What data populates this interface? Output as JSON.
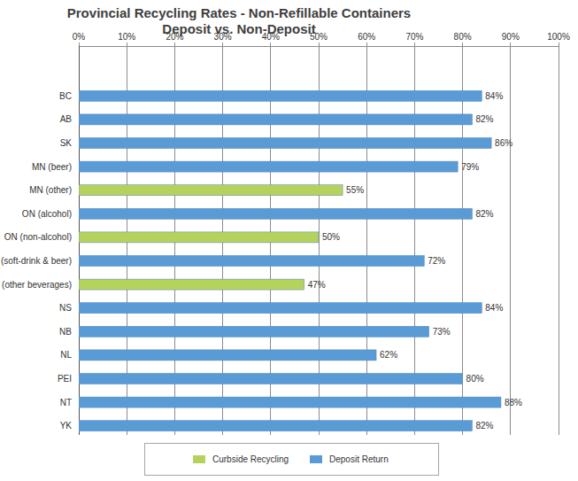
{
  "chart_data": {
    "type": "bar",
    "title": "Provincial Recycling Rates - Non-Refillable Containers",
    "subtitle": "Deposit vs. Non-Deposit",
    "orientation": "horizontal",
    "stacked": true,
    "grid": true,
    "legend": "bottom",
    "data_labels": true,
    "categories": [
      "BC",
      "AB",
      "SK",
      "MN (beer)",
      "MN (other)",
      "ON (alcohol)",
      "ON (non-alcohol)",
      "QC (soft-drink & beer)",
      "QC (other beverages)",
      "NS",
      "NB",
      "NL",
      "PEI",
      "NT",
      "YK"
    ],
    "series": [
      {
        "name": "Curbside Recycling",
        "color": "#b5d35c",
        "values": [
          null,
          null,
          null,
          null,
          55,
          null,
          50,
          null,
          47,
          null,
          null,
          null,
          null,
          null,
          null
        ],
        "value_labels": [
          null,
          null,
          null,
          null,
          "55%",
          null,
          "50%",
          null,
          "47%",
          null,
          null,
          null,
          null,
          null,
          null
        ]
      },
      {
        "name": "Deposit Return",
        "color": "#5b9bd5",
        "values": [
          84,
          82,
          86,
          79,
          null,
          82,
          null,
          72,
          null,
          84,
          73,
          62,
          80,
          88,
          82
        ],
        "value_labels": [
          "84%",
          "82%",
          "86%",
          "79%",
          null,
          "82%",
          null,
          "72%",
          null,
          "84%",
          "73%",
          "62%",
          "80%",
          "88%",
          "82%"
        ]
      }
    ],
    "xlim": [
      0,
      100
    ],
    "xticks": [
      {
        "value": 0,
        "label": "0%"
      },
      {
        "value": 10,
        "label": "10%"
      },
      {
        "value": 20,
        "label": "20%"
      },
      {
        "value": 30,
        "label": "30%"
      },
      {
        "value": 40,
        "label": "40%"
      },
      {
        "value": 50,
        "label": "50%"
      },
      {
        "value": 60,
        "label": "60%"
      },
      {
        "value": 70,
        "label": "70%"
      },
      {
        "value": 80,
        "label": "80%"
      },
      {
        "value": 90,
        "label": "90%"
      },
      {
        "value": 100,
        "label": "100%"
      }
    ]
  }
}
